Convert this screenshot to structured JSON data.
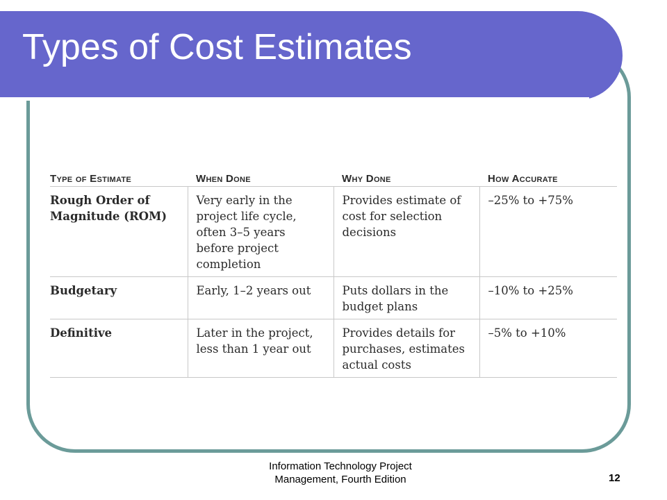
{
  "slide": {
    "title": "Types of Cost Estimates",
    "footer_line1": "Information Technology Project",
    "footer_line2": "Management, Fourth Edition",
    "page_number": "12"
  },
  "table": {
    "headers": [
      "Type of Estimate",
      "When Done",
      "Why Done",
      "How Accurate"
    ],
    "rows": [
      [
        "Rough Order of Magnitude (ROM)",
        "Very early in the project life cycle, often 3–5 years before project completion",
        "Provides estimate of cost for selection decisions",
        "–25% to +75%"
      ],
      [
        "Budgetary",
        "Early, 1–2 years out",
        "Puts dollars in the budget plans",
        "–10% to +25%"
      ],
      [
        "Definitive",
        "Later in the project, less than 1 year out",
        "Provides details for purchases, estimates actual costs",
        "–5% to +10%"
      ]
    ]
  },
  "colors": {
    "banner": "#6666cc",
    "frame": "#6b9b99"
  }
}
